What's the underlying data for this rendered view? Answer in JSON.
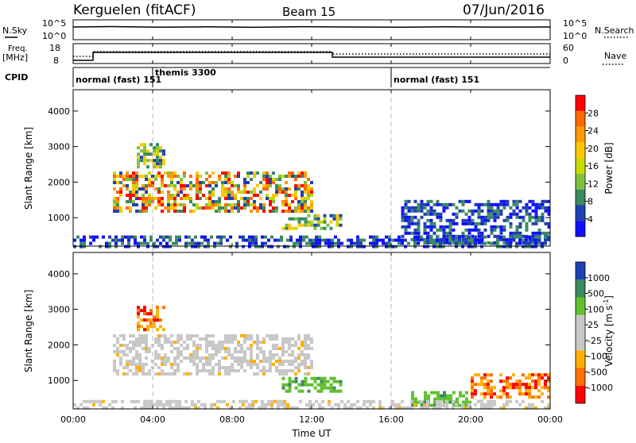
{
  "header": {
    "title": "Kerguelen (fitACF)",
    "beam": "Beam 15",
    "date": "07/Jun/2016"
  },
  "strips": {
    "nsky_label": "N.Sky",
    "nsky_ticks": [
      "10^5",
      "10^0"
    ],
    "nsearch_label": "N.Search",
    "nsearch_ticks": [
      "10^5",
      "10^0"
    ],
    "freq_label": "Freq.",
    "freq_unit": "[MHz]",
    "freq_ticks": [
      "18",
      "8"
    ],
    "nave_label": "Nave",
    "nave_ticks": [
      "60",
      "0"
    ],
    "cpid_label": "CPID",
    "cpid_segments": [
      {
        "label": "normal (fast) 151",
        "start_hour": 0,
        "end_hour": 4
      },
      {
        "label": "themis 3300",
        "start_hour": 4,
        "end_hour": 16
      },
      {
        "label": "normal (fast) 151",
        "start_hour": 16,
        "end_hour": 24
      }
    ]
  },
  "chart_data": [
    {
      "type": "heatmap",
      "name": "power",
      "ylabel": "Slant Range [km]",
      "yticks": [
        "4000",
        "3000",
        "2000",
        "1000"
      ],
      "ylim": [
        200,
        4600
      ],
      "xlim": [
        0,
        24
      ],
      "colorbar_label": "Power [dB]",
      "colorbar_ticks": [
        "28",
        "24",
        "20",
        "16",
        "12",
        "8",
        "4"
      ],
      "colorbar_colors": [
        "#ff0000",
        "#ff6a00",
        "#ff9a00",
        "#ffc800",
        "#c8d800",
        "#80c040",
        "#3a8a60",
        "#2040b0",
        "#1010ff"
      ],
      "regions": [
        {
          "x0": 2.0,
          "x1": 12.0,
          "y0": 1200,
          "y1": 2300,
          "level": "mixed-high"
        },
        {
          "x0": 3.2,
          "x1": 4.5,
          "y0": 2400,
          "y1": 3100,
          "level": "medium"
        },
        {
          "x0": 10.5,
          "x1": 13.5,
          "y0": 700,
          "y1": 1100,
          "level": "medium"
        },
        {
          "x0": 16.5,
          "x1": 24.0,
          "y0": 300,
          "y1": 1500,
          "level": "low"
        },
        {
          "x0": 0.0,
          "x1": 24.0,
          "y0": 220,
          "y1": 500,
          "level": "low"
        }
      ]
    },
    {
      "type": "heatmap",
      "name": "velocity",
      "ylabel": "Slant Range [km]",
      "yticks": [
        "4000",
        "3000",
        "2000",
        "1000"
      ],
      "ylim": [
        200,
        4600
      ],
      "xlim": [
        0,
        24
      ],
      "xticks": [
        "00:00",
        "04:00",
        "08:00",
        "12:00",
        "16:00",
        "20:00",
        "00:00"
      ],
      "xlabel": "Time UT",
      "colorbar_label": "Velocity [m s",
      "colorbar_unit_sup": "-1",
      "colorbar_unit_close": "]",
      "colorbar_ticks": [
        "1000",
        "500",
        "100",
        "25",
        "-25",
        "-100",
        "-500",
        "-1000"
      ],
      "colorbar_colors": [
        "#2040b0",
        "#3a8a60",
        "#60c030",
        "#c8c8c8",
        "#c8c8c8",
        "#ffb000",
        "#ff7000",
        "#ff0000"
      ],
      "regions": [
        {
          "x0": 2.0,
          "x1": 12.0,
          "y0": 1200,
          "y1": 2300,
          "level": "ground-scatter"
        },
        {
          "x0": 3.2,
          "x1": 4.5,
          "y0": 2400,
          "y1": 3100,
          "level": "negative"
        },
        {
          "x0": 10.5,
          "x1": 13.5,
          "y0": 700,
          "y1": 1100,
          "level": "positive"
        },
        {
          "x0": 17.0,
          "x1": 20.0,
          "y0": 300,
          "y1": 700,
          "level": "positive"
        },
        {
          "x0": 20.0,
          "x1": 24.0,
          "y0": 500,
          "y1": 1200,
          "level": "negative"
        },
        {
          "x0": 0.0,
          "x1": 24.0,
          "y0": 220,
          "y1": 450,
          "level": "ground-scatter"
        }
      ]
    }
  ]
}
